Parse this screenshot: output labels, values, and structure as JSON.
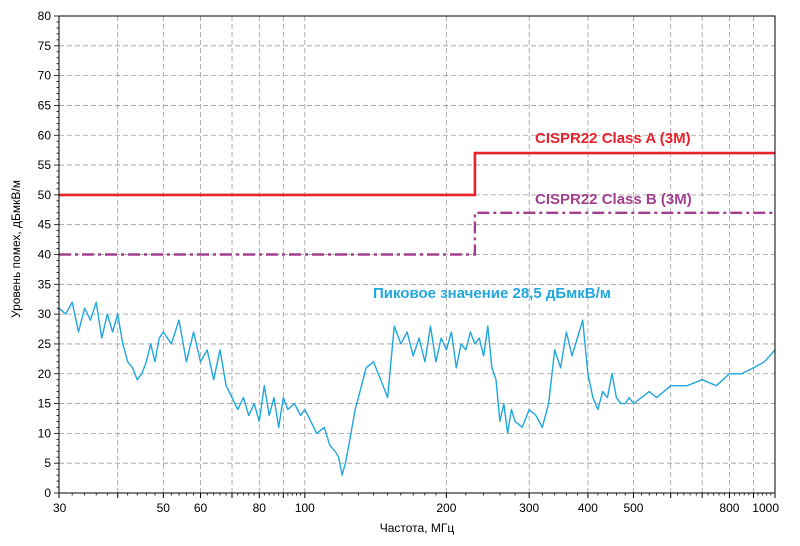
{
  "chart_data": {
    "type": "line",
    "xlabel": "Частота, МГц",
    "ylabel": "Уровень помех, дБмкВ/м",
    "xscale": "log",
    "xlim": [
      30,
      1000
    ],
    "ylim": [
      0,
      80
    ],
    "grid": true,
    "x_tick_labels": [
      "30",
      "50",
      "60",
      "80",
      "100",
      "200",
      "300",
      "400",
      "500",
      "800",
      "1000"
    ],
    "y_tick_labels": [
      "0",
      "5",
      "10",
      "15",
      "20",
      "25",
      "30",
      "35",
      "40",
      "45",
      "50",
      "55",
      "60",
      "65",
      "70",
      "75",
      "80"
    ],
    "annotation": "Пиковое значение 28,5 дБмкВ/м",
    "limits": [
      {
        "name": "CISPR22 Class A (3M)",
        "color": "#e8212b",
        "style": "solid",
        "points": [
          [
            30,
            50
          ],
          [
            230,
            50
          ],
          [
            230,
            57
          ],
          [
            1000,
            57
          ]
        ]
      },
      {
        "name": "CISPR22 Class B (3M)",
        "color": "#a3408e",
        "style": "dashdot",
        "points": [
          [
            30,
            40
          ],
          [
            230,
            40
          ],
          [
            230,
            47
          ],
          [
            1000,
            47
          ]
        ]
      }
    ],
    "series": [
      {
        "color": "#1fa7de",
        "x": [
          30,
          31,
          32,
          33,
          34,
          35,
          36,
          37,
          38,
          39,
          40,
          41,
          42,
          43,
          44,
          45,
          46,
          47,
          48,
          49,
          50,
          52,
          54,
          56,
          58,
          60,
          62,
          64,
          66,
          68,
          70,
          72,
          74,
          76,
          78,
          80,
          82,
          84,
          86,
          88,
          90,
          92,
          95,
          98,
          100,
          103,
          106,
          110,
          113,
          116,
          118,
          120,
          122,
          124,
          126,
          128,
          130,
          135,
          140,
          145,
          150,
          155,
          160,
          165,
          170,
          175,
          180,
          185,
          190,
          195,
          200,
          205,
          210,
          215,
          220,
          225,
          230,
          235,
          240,
          245,
          250,
          255,
          260,
          265,
          270,
          275,
          280,
          290,
          300,
          310,
          320,
          330,
          340,
          350,
          360,
          370,
          380,
          390,
          400,
          405,
          410,
          420,
          430,
          440,
          450,
          460,
          470,
          480,
          490,
          500,
          520,
          540,
          560,
          580,
          600,
          650,
          700,
          750,
          800,
          850,
          900,
          950,
          1000
        ],
        "y": [
          31,
          30,
          32,
          27,
          31,
          29,
          32,
          26,
          30,
          27,
          30,
          25,
          22,
          21,
          19,
          20,
          22,
          25,
          22,
          26,
          27,
          25,
          29,
          22,
          27,
          22,
          24,
          19,
          24,
          18,
          16,
          14,
          16,
          13,
          15,
          12,
          18,
          13,
          16,
          11,
          16,
          14,
          15,
          13,
          14,
          12,
          10,
          11,
          8,
          7,
          6,
          3,
          5,
          8,
          11,
          14,
          16,
          21,
          22,
          19,
          16,
          28,
          25,
          27,
          23,
          26,
          22,
          28,
          22,
          26,
          24,
          27,
          21,
          25,
          24,
          27,
          25,
          26,
          23,
          28,
          21,
          19,
          12,
          15,
          10,
          14,
          12,
          11,
          14,
          13,
          11,
          15,
          24,
          21,
          27,
          23,
          26,
          29,
          20,
          18,
          16,
          14,
          17,
          16,
          20,
          16,
          15,
          15,
          16,
          15,
          16,
          17,
          16,
          17,
          18,
          18,
          19,
          18,
          20,
          20,
          21,
          22,
          24
        ]
      }
    ]
  }
}
